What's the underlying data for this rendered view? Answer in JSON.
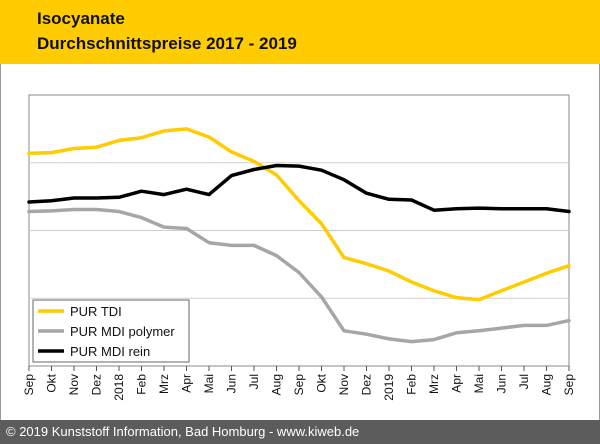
{
  "header": {
    "title_line1": "Isocyanate",
    "title_line2": "Durchschnittspreise 2017 - 2019"
  },
  "footer": {
    "text": "© 2019 Kunststoff Information, Bad Homburg - www.kiweb.de"
  },
  "colors": {
    "header_bg": "#ffcc00",
    "footer_bg": "#5c5c5c",
    "pur_tdi": "#ffcc00",
    "pur_mdi_polymer": "#a6a6a6",
    "pur_mdi_rein": "#000000"
  },
  "chart_data": {
    "type": "line",
    "title": "Durchschnittspreise 2017 - 2019",
    "x": [
      "Sep",
      "Okt",
      "Nov",
      "Dez",
      "2018",
      "Feb",
      "Mrz",
      "Apr",
      "Mai",
      "Jun",
      "Jul",
      "Aug",
      "Sep",
      "Okt",
      "Nov",
      "Dez",
      "2019",
      "Feb",
      "Mrz",
      "Apr",
      "Mai",
      "Jun",
      "Jul",
      "Aug",
      "Sep"
    ],
    "ylim": [
      0,
      4
    ],
    "y_ticks": [
      0,
      1,
      2,
      3,
      4
    ],
    "y_tick_labels_shown": false,
    "grid": "horizontal",
    "legend_position": "bottom-left",
    "series": [
      {
        "name": "PUR TDI",
        "color": "#ffcc00",
        "values": [
          3.14,
          3.15,
          3.21,
          3.23,
          3.33,
          3.37,
          3.47,
          3.5,
          3.38,
          3.16,
          3.02,
          2.82,
          2.44,
          2.1,
          1.6,
          1.51,
          1.4,
          1.24,
          1.11,
          1.01,
          0.98,
          1.11,
          1.24,
          1.37,
          1.48
        ]
      },
      {
        "name": "PUR MDI polymer",
        "color": "#a6a6a6",
        "values": [
          2.28,
          2.29,
          2.31,
          2.31,
          2.28,
          2.19,
          2.05,
          2.03,
          1.82,
          1.78,
          1.78,
          1.63,
          1.38,
          1.02,
          0.52,
          0.47,
          0.4,
          0.36,
          0.39,
          0.49,
          0.52,
          0.56,
          0.6,
          0.6,
          0.67
        ]
      },
      {
        "name": "PUR MDI rein",
        "color": "#000000",
        "values": [
          2.42,
          2.44,
          2.48,
          2.48,
          2.49,
          2.58,
          2.53,
          2.61,
          2.53,
          2.81,
          2.9,
          2.96,
          2.95,
          2.89,
          2.75,
          2.55,
          2.46,
          2.45,
          2.3,
          2.32,
          2.33,
          2.32,
          2.32,
          2.32,
          2.28
        ]
      }
    ]
  }
}
